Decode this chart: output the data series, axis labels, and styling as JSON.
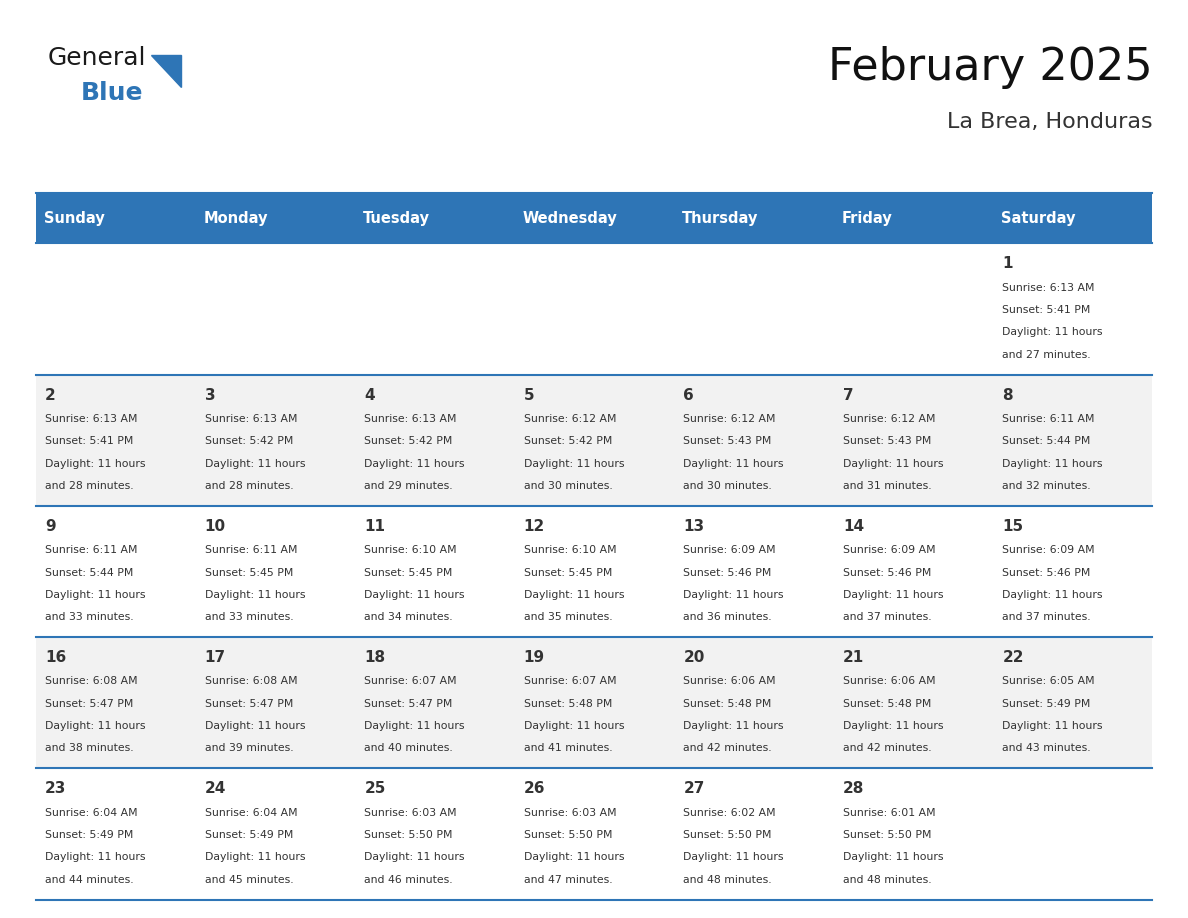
{
  "title": "February 2025",
  "subtitle": "La Brea, Honduras",
  "header_color": "#2E75B6",
  "header_text_color": "#FFFFFF",
  "bg_color": "#FFFFFF",
  "cell_bg_even": "#F2F2F2",
  "cell_bg_odd": "#FFFFFF",
  "day_headers": [
    "Sunday",
    "Monday",
    "Tuesday",
    "Wednesday",
    "Thursday",
    "Friday",
    "Saturday"
  ],
  "grid_line_color": "#2E75B6",
  "date_color": "#333333",
  "info_color": "#333333",
  "days": [
    {
      "day": 1,
      "col": 6,
      "row": 0,
      "sunrise": "6:13 AM",
      "sunset": "5:41 PM",
      "daylight": "11 hours and 27 minutes."
    },
    {
      "day": 2,
      "col": 0,
      "row": 1,
      "sunrise": "6:13 AM",
      "sunset": "5:41 PM",
      "daylight": "11 hours and 28 minutes."
    },
    {
      "day": 3,
      "col": 1,
      "row": 1,
      "sunrise": "6:13 AM",
      "sunset": "5:42 PM",
      "daylight": "11 hours and 28 minutes."
    },
    {
      "day": 4,
      "col": 2,
      "row": 1,
      "sunrise": "6:13 AM",
      "sunset": "5:42 PM",
      "daylight": "11 hours and 29 minutes."
    },
    {
      "day": 5,
      "col": 3,
      "row": 1,
      "sunrise": "6:12 AM",
      "sunset": "5:42 PM",
      "daylight": "11 hours and 30 minutes."
    },
    {
      "day": 6,
      "col": 4,
      "row": 1,
      "sunrise": "6:12 AM",
      "sunset": "5:43 PM",
      "daylight": "11 hours and 30 minutes."
    },
    {
      "day": 7,
      "col": 5,
      "row": 1,
      "sunrise": "6:12 AM",
      "sunset": "5:43 PM",
      "daylight": "11 hours and 31 minutes."
    },
    {
      "day": 8,
      "col": 6,
      "row": 1,
      "sunrise": "6:11 AM",
      "sunset": "5:44 PM",
      "daylight": "11 hours and 32 minutes."
    },
    {
      "day": 9,
      "col": 0,
      "row": 2,
      "sunrise": "6:11 AM",
      "sunset": "5:44 PM",
      "daylight": "11 hours and 33 minutes."
    },
    {
      "day": 10,
      "col": 1,
      "row": 2,
      "sunrise": "6:11 AM",
      "sunset": "5:45 PM",
      "daylight": "11 hours and 33 minutes."
    },
    {
      "day": 11,
      "col": 2,
      "row": 2,
      "sunrise": "6:10 AM",
      "sunset": "5:45 PM",
      "daylight": "11 hours and 34 minutes."
    },
    {
      "day": 12,
      "col": 3,
      "row": 2,
      "sunrise": "6:10 AM",
      "sunset": "5:45 PM",
      "daylight": "11 hours and 35 minutes."
    },
    {
      "day": 13,
      "col": 4,
      "row": 2,
      "sunrise": "6:09 AM",
      "sunset": "5:46 PM",
      "daylight": "11 hours and 36 minutes."
    },
    {
      "day": 14,
      "col": 5,
      "row": 2,
      "sunrise": "6:09 AM",
      "sunset": "5:46 PM",
      "daylight": "11 hours and 37 minutes."
    },
    {
      "day": 15,
      "col": 6,
      "row": 2,
      "sunrise": "6:09 AM",
      "sunset": "5:46 PM",
      "daylight": "11 hours and 37 minutes."
    },
    {
      "day": 16,
      "col": 0,
      "row": 3,
      "sunrise": "6:08 AM",
      "sunset": "5:47 PM",
      "daylight": "11 hours and 38 minutes."
    },
    {
      "day": 17,
      "col": 1,
      "row": 3,
      "sunrise": "6:08 AM",
      "sunset": "5:47 PM",
      "daylight": "11 hours and 39 minutes."
    },
    {
      "day": 18,
      "col": 2,
      "row": 3,
      "sunrise": "6:07 AM",
      "sunset": "5:47 PM",
      "daylight": "11 hours and 40 minutes."
    },
    {
      "day": 19,
      "col": 3,
      "row": 3,
      "sunrise": "6:07 AM",
      "sunset": "5:48 PM",
      "daylight": "11 hours and 41 minutes."
    },
    {
      "day": 20,
      "col": 4,
      "row": 3,
      "sunrise": "6:06 AM",
      "sunset": "5:48 PM",
      "daylight": "11 hours and 42 minutes."
    },
    {
      "day": 21,
      "col": 5,
      "row": 3,
      "sunrise": "6:06 AM",
      "sunset": "5:48 PM",
      "daylight": "11 hours and 42 minutes."
    },
    {
      "day": 22,
      "col": 6,
      "row": 3,
      "sunrise": "6:05 AM",
      "sunset": "5:49 PM",
      "daylight": "11 hours and 43 minutes."
    },
    {
      "day": 23,
      "col": 0,
      "row": 4,
      "sunrise": "6:04 AM",
      "sunset": "5:49 PM",
      "daylight": "11 hours and 44 minutes."
    },
    {
      "day": 24,
      "col": 1,
      "row": 4,
      "sunrise": "6:04 AM",
      "sunset": "5:49 PM",
      "daylight": "11 hours and 45 minutes."
    },
    {
      "day": 25,
      "col": 2,
      "row": 4,
      "sunrise": "6:03 AM",
      "sunset": "5:50 PM",
      "daylight": "11 hours and 46 minutes."
    },
    {
      "day": 26,
      "col": 3,
      "row": 4,
      "sunrise": "6:03 AM",
      "sunset": "5:50 PM",
      "daylight": "11 hours and 47 minutes."
    },
    {
      "day": 27,
      "col": 4,
      "row": 4,
      "sunrise": "6:02 AM",
      "sunset": "5:50 PM",
      "daylight": "11 hours and 48 minutes."
    },
    {
      "day": 28,
      "col": 5,
      "row": 4,
      "sunrise": "6:01 AM",
      "sunset": "5:50 PM",
      "daylight": "11 hours and 48 minutes."
    }
  ],
  "logo_general_color": "#1a1a1a",
  "logo_blue_color": "#2E75B6",
  "logo_triangle_color": "#2E75B6"
}
